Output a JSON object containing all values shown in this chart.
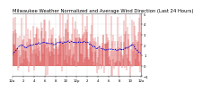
{
  "title": "Milwaukee Weather Normalized and Average Wind Direction (Last 24 Hours)",
  "background_color": "#ffffff",
  "plot_bg_color": "#ffffff",
  "grid_color": "#bbbbbb",
  "bar_color": "#cc0000",
  "line_color": "#0000cc",
  "n_points": 288,
  "y_min": -1,
  "y_max": 5,
  "y_ticks": [
    5,
    4,
    3,
    2,
    1,
    0,
    -1
  ],
  "title_fontsize": 3.8,
  "tick_fontsize": 2.8,
  "x_labels": [
    "12a",
    "2",
    "4",
    "6",
    "8",
    "10",
    "12p",
    "2",
    "4",
    "6",
    "8",
    "10",
    "12a"
  ],
  "seed": 42
}
